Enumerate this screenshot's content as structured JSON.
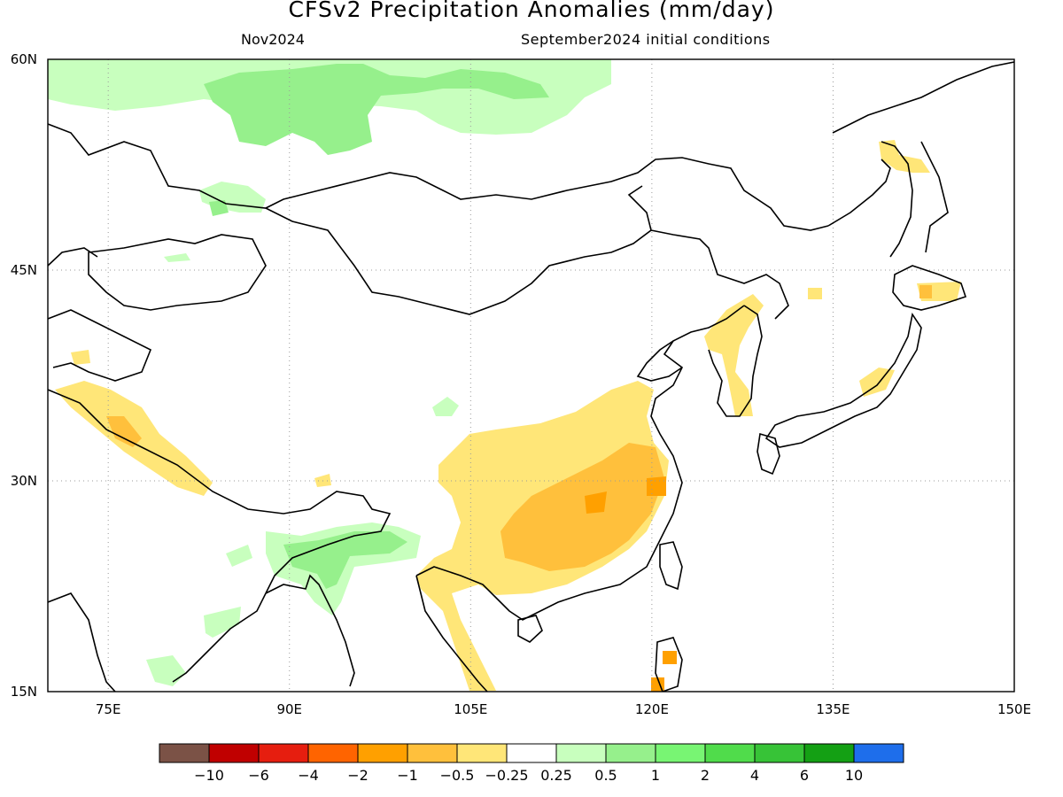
{
  "title": "CFSv2 Precipitation Anomalies (mm/day)",
  "subtitle_left": "Nov2024",
  "subtitle_right": "September2024 initial conditions",
  "map": {
    "lon_range": [
      70,
      150
    ],
    "lat_range": [
      15,
      60
    ],
    "x_ticks": [
      "75E",
      "90E",
      "105E",
      "120E",
      "135E",
      "150E"
    ],
    "x_tick_values": [
      75,
      90,
      105,
      120,
      135,
      150
    ],
    "y_ticks": [
      "60N",
      "45N",
      "30N",
      "15N"
    ],
    "y_tick_values": [
      60,
      45,
      30,
      15
    ],
    "grid": "dotted"
  },
  "colorbar": {
    "colors": [
      "#7b5246",
      "#c00000",
      "#e61e0f",
      "#ff6400",
      "#ffa000",
      "#ffc03c",
      "#ffe678",
      "#ffffff",
      "#c8ffbe",
      "#96f08c",
      "#78f573",
      "#50dc4b",
      "#37c337",
      "#14a014",
      "#1e6eeb"
    ],
    "labels": [
      "-10",
      "-6",
      "-4",
      "-2",
      "-1",
      "-0.5",
      "-0.25",
      "0.25",
      "0.5",
      "1",
      "2",
      "4",
      "6",
      "10"
    ]
  },
  "colors": {
    "dry_light": "#ffe678",
    "dry_mid": "#ffc03c",
    "dry_strong": "#ffa000",
    "wet_light": "#c8ffbe",
    "wet_mid": "#96f08c",
    "wet_strong": "#78f573"
  }
}
